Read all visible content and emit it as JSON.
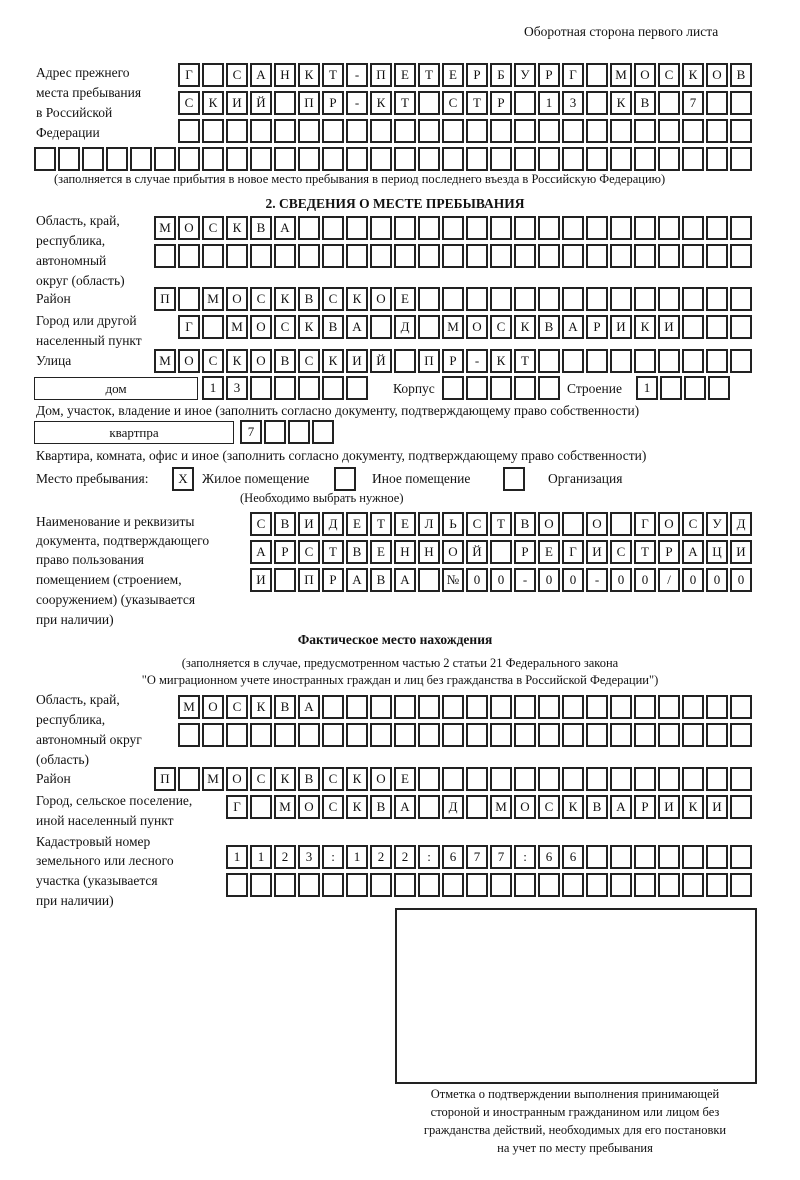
{
  "header": {
    "side_note": "Оборотная сторона первого листа"
  },
  "prev_address": {
    "label": [
      "Адрес прежнего",
      "места пребывания",
      "в Российской",
      "Федерации"
    ],
    "rows": [
      [
        "Г",
        "",
        "С",
        "А",
        "Н",
        "К",
        "Т",
        "-",
        "П",
        "Е",
        "Т",
        "Е",
        "Р",
        "Б",
        "У",
        "Р",
        "Г",
        "",
        "М",
        "О",
        "С",
        "К",
        "О",
        "В"
      ],
      [
        "С",
        "К",
        "И",
        "Й",
        "",
        "П",
        "Р",
        "-",
        "К",
        "Т",
        "",
        "С",
        "Т",
        "Р",
        "",
        "1",
        "3",
        "",
        "К",
        "В",
        "",
        "7"
      ],
      [],
      []
    ],
    "note": "(заполняется в случае прибытия в новое место пребывания в период последнего въезда в Российскую Федерацию)"
  },
  "section2": {
    "title": "2. СВЕДЕНИЯ О МЕСТЕ ПРЕБЫВАНИЯ",
    "region_label": [
      "Область, край,",
      "республика,",
      "автономный",
      "округ (область)"
    ],
    "region_rows": [
      [
        "М",
        "О",
        "С",
        "К",
        "В",
        "А"
      ],
      []
    ],
    "district_label": "Район",
    "district": [
      "П",
      "",
      "М",
      "О",
      "С",
      "К",
      "В",
      "С",
      "К",
      "О",
      "Е"
    ],
    "city_label": [
      "Город или другой",
      "населенный пункт"
    ],
    "city": [
      "Г",
      "",
      "М",
      "О",
      "С",
      "К",
      "В",
      "А",
      "",
      "Д",
      "",
      "М",
      "О",
      "С",
      "К",
      "В",
      "А",
      "Р",
      "И",
      "К",
      "И"
    ],
    "street_label": "Улица",
    "street": [
      "М",
      "О",
      "С",
      "К",
      "О",
      "В",
      "С",
      "К",
      "И",
      "Й",
      "",
      "П",
      "Р",
      "-",
      "К",
      "Т"
    ],
    "house_type": "дом",
    "house": [
      "1",
      "3"
    ],
    "korpus_label": "Корпус",
    "korpus": [],
    "building_label": "Строение",
    "building": [
      "1"
    ],
    "house_note": "Дом, участок, владение и иное (заполнить согласно документу, подтверждающему право собственности)",
    "flat_type": "квартпра",
    "flat": [
      "7"
    ],
    "flat_note": "Квартира, комната, офис и иное (заполнить согласно документу, подтверждающему право собственности)",
    "stay_label": "Место пребывания:",
    "options": [
      {
        "label": "Жилое помещение",
        "mark": "X",
        "checked": true
      },
      {
        "label": "Иное помещение",
        "mark": "",
        "checked": false
      },
      {
        "label": "Организация",
        "mark": "",
        "checked": false
      }
    ],
    "choose_note": "(Необходимо выбрать нужное)",
    "doc_label": [
      "Наименование и реквизиты",
      "документа, подтверждающего",
      "право пользования",
      "помещением (строением,",
      "сооружением) (указывается",
      "при наличии)"
    ],
    "doc_rows": [
      [
        "С",
        "В",
        "И",
        "Д",
        "Е",
        "Т",
        "Е",
        "Л",
        "Ь",
        "С",
        "Т",
        "В",
        "О",
        "",
        "О",
        "",
        "Г",
        "О",
        "С",
        "У",
        "Д"
      ],
      [
        "А",
        "Р",
        "С",
        "Т",
        "В",
        "Е",
        "Н",
        "Н",
        "О",
        "Й",
        "",
        "Р",
        "Е",
        "Г",
        "И",
        "С",
        "Т",
        "Р",
        "А",
        "Ц",
        "И"
      ],
      [
        "И",
        "",
        "П",
        "Р",
        "А",
        "В",
        "А",
        "",
        "№",
        "0",
        "0",
        "-",
        "0",
        "0",
        "-",
        "0",
        "0",
        "/",
        "0",
        "0",
        "0"
      ]
    ]
  },
  "actual": {
    "title": "Фактическое место нахождения",
    "note1": "(заполняется в случае, предусмотренном частью 2 статьи 21 Федерального закона",
    "note2": "\"О миграционном учете иностранных граждан и лиц без гражданства в Российской Федерации\")",
    "region_label": [
      "Область, край,",
      "республика,",
      "автономный округ",
      "(область)"
    ],
    "region_rows": [
      [
        "М",
        "О",
        "С",
        "К",
        "В",
        "А"
      ],
      []
    ],
    "district_label": "Район",
    "district": [
      "П",
      "",
      "М",
      "О",
      "С",
      "К",
      "В",
      "С",
      "К",
      "О",
      "Е"
    ],
    "city_label": [
      "Город, сельское поселение,",
      "иной населенный пункт"
    ],
    "city": [
      "Г",
      "",
      "М",
      "О",
      "С",
      "К",
      "В",
      "А",
      "",
      "Д",
      "",
      "М",
      "О",
      "С",
      "К",
      "В",
      "А",
      "Р",
      "И",
      "К",
      "И"
    ],
    "cadastral_label": [
      "Кадастровый номер",
      "земельного или лесного",
      "участка (указывается",
      "при наличии)"
    ],
    "cadastral_rows": [
      [
        "1",
        "1",
        "2",
        "3",
        ":",
        "1",
        "2",
        "2",
        ":",
        "6",
        "7",
        "7",
        ":",
        "6",
        "6"
      ],
      []
    ]
  },
  "stamp": {
    "caption": [
      "Отметка о подтверждении выполнения принимающей",
      "стороной и иностранным гражданином или лицом без",
      "гражданства действий, необходимых для его постановки",
      "на учет по месту пребывания"
    ]
  }
}
